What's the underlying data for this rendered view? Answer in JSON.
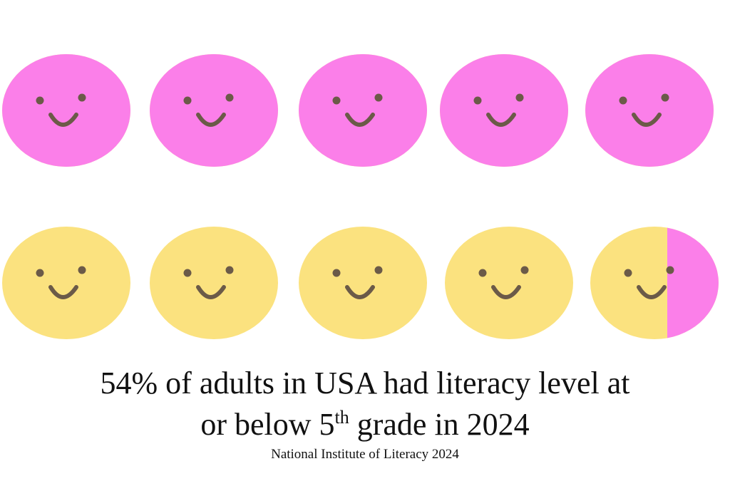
{
  "chart_data": {
    "type": "pictograph",
    "value": 54,
    "fill_color": "#fb7fe9",
    "base_color": "#fbe27f",
    "title_line1": "54% of adults in USA had literacy level at",
    "title_line2_start": "or below 5",
    "title_superscript": "th",
    "title_line2_end": " grade in 2024",
    "source": "National Institute of Literacy 2024"
  }
}
